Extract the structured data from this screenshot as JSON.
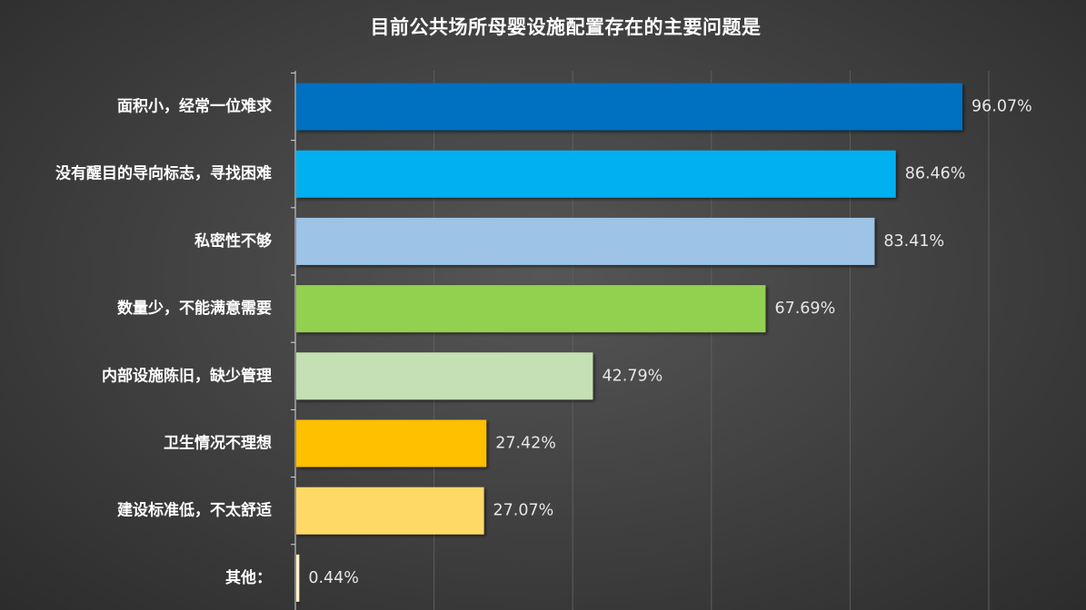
{
  "chart_data": {
    "type": "bar",
    "orientation": "horizontal",
    "title": "目前公共场所母婴设施配置存在的主要问题是",
    "xlabel": "",
    "ylabel": "",
    "xlim": [
      0,
      100
    ],
    "value_suffix": "%",
    "grid": true,
    "legend": "none",
    "categories": [
      "面积小，经常一位难求",
      "没有醒目的导向标志，寻找困难",
      "私密性不够",
      "数量少，不能满意需要",
      "内部设施陈旧，缺少管理",
      "卫生情况不理想",
      "建设标准低，不太舒适",
      "其他："
    ],
    "values": [
      96.07,
      86.46,
      83.41,
      67.69,
      42.79,
      27.42,
      27.07,
      0.44
    ],
    "value_labels": [
      "96.07%",
      "86.46%",
      "83.41%",
      "67.69%",
      "42.79%",
      "27.42%",
      "27.07%",
      "0.44%"
    ],
    "colors": [
      "#0070c0",
      "#00b0f0",
      "#9dc3e6",
      "#92d050",
      "#c5e0b4",
      "#ffc000",
      "#ffd966",
      "#fff2cc"
    ]
  },
  "style": {
    "background": "#3f3f3f",
    "grid_color": "#5e5e5e",
    "axis_color": "#d9d9d9"
  }
}
